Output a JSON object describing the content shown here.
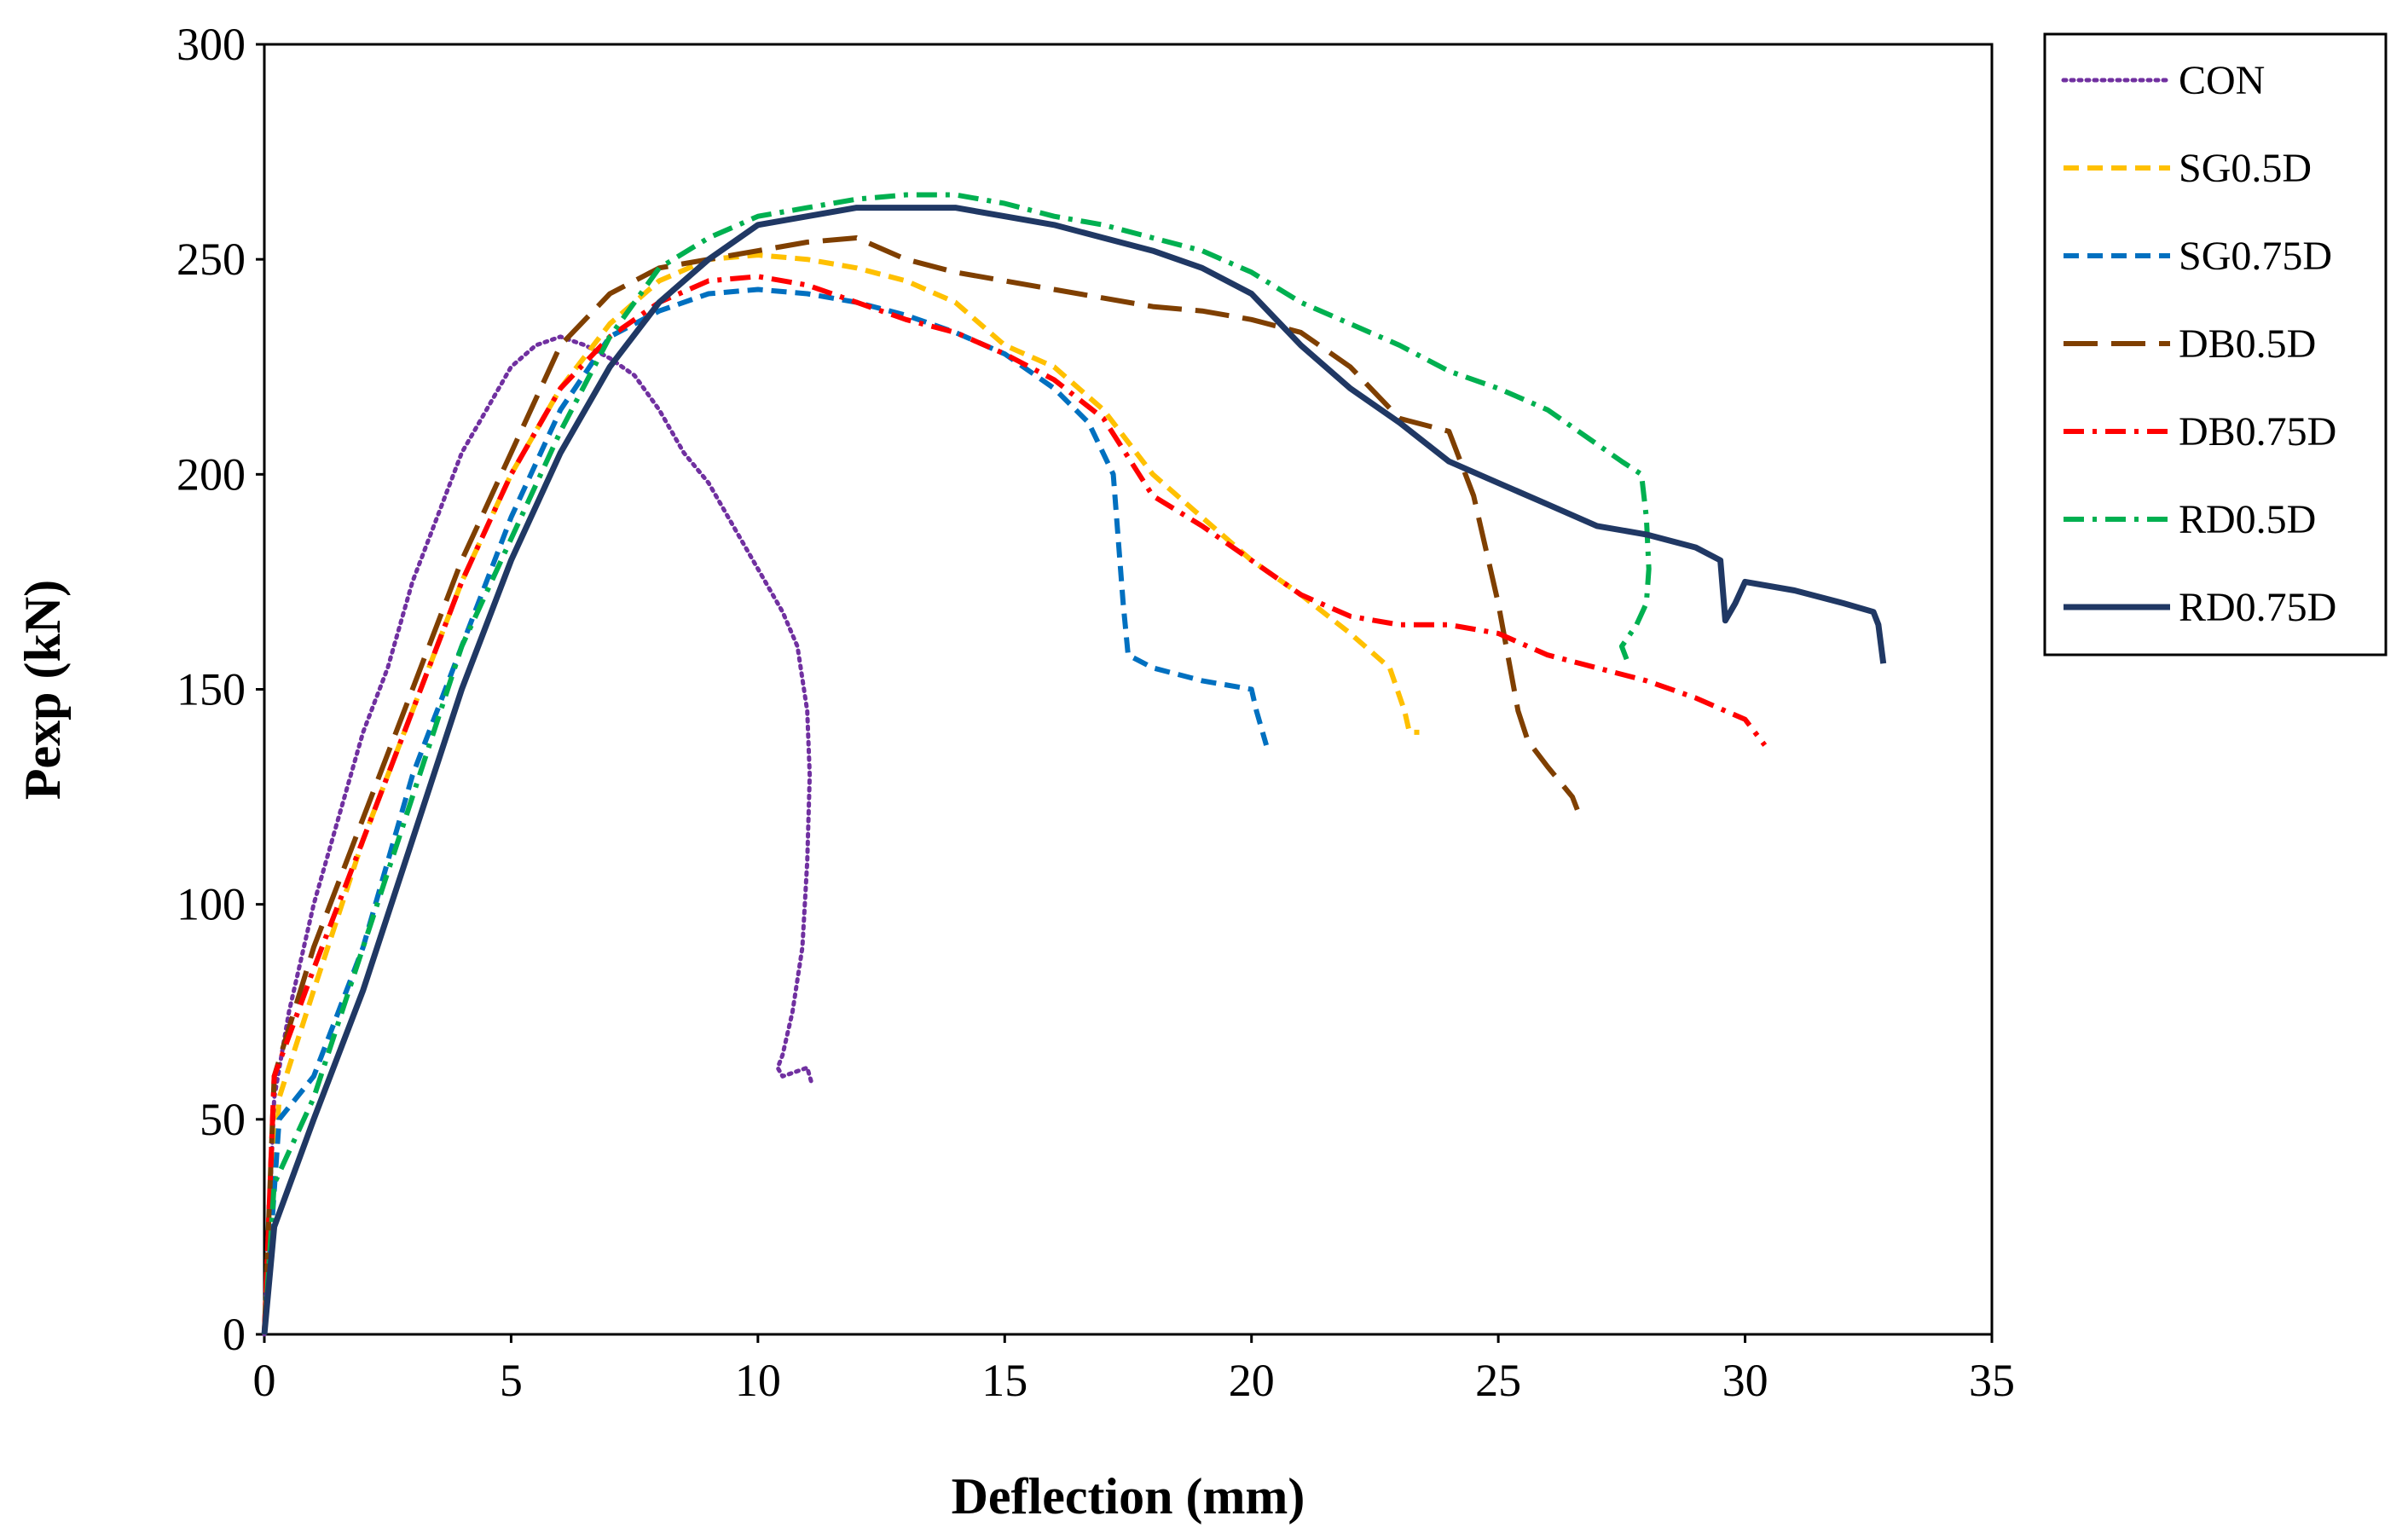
{
  "chart_data": {
    "type": "line",
    "title": "",
    "xlabel": "Deflection (mm)",
    "ylabel": "Pexp (kN)",
    "xlim": [
      0,
      35
    ],
    "ylim": [
      0,
      300
    ],
    "xticks": [
      0,
      5,
      10,
      15,
      20,
      25,
      30,
      35
    ],
    "yticks": [
      0,
      50,
      100,
      150,
      200,
      250,
      300
    ],
    "xtick_labels": [
      "0",
      "5",
      "10",
      "15",
      "20",
      "25",
      "30",
      "35"
    ],
    "ytick_labels": [
      "0",
      "50",
      "100",
      "150",
      "200",
      "250",
      "300"
    ],
    "grid": false,
    "legend_position": "right",
    "series": [
      {
        "name": "CON",
        "color": "#7030A0",
        "dash": "dotted",
        "x": [
          0,
          0.2,
          0.5,
          1,
          1.5,
          2,
          2.5,
          3,
          3.5,
          4,
          4.5,
          5,
          5.5,
          6,
          6.5,
          7,
          7.5,
          8,
          8.5,
          9,
          9.5,
          10,
          10.5,
          10.8,
          11,
          11.05,
          11.0,
          10.9,
          10.7,
          10.5,
          10.4,
          10.5,
          11.0,
          11.1
        ],
        "y": [
          0,
          55,
          75,
          100,
          120,
          140,
          155,
          175,
          190,
          205,
          215,
          225,
          230,
          232,
          230,
          227,
          223,
          215,
          205,
          198,
          188,
          178,
          168,
          160,
          145,
          130,
          110,
          90,
          75,
          65,
          62,
          60,
          62,
          58
        ]
      },
      {
        "name": "SG0.5D",
        "color": "#FFC000",
        "dash": "dashed",
        "x": [
          0,
          0.3,
          1,
          2,
          3,
          4,
          5,
          6,
          7,
          8,
          9,
          10,
          11,
          12,
          13,
          14,
          15,
          16,
          17,
          18,
          19,
          20,
          21,
          22,
          22.8,
          23.1,
          23.2,
          23.4
        ],
        "y": [
          0,
          55,
          80,
          115,
          145,
          175,
          200,
          220,
          235,
          245,
          250,
          251,
          250,
          248,
          245,
          240,
          230,
          225,
          215,
          200,
          190,
          180,
          172,
          163,
          155,
          145,
          140,
          140
        ]
      },
      {
        "name": "SG0.75D",
        "color": "#0070C0",
        "dash": "dashed",
        "x": [
          0,
          0.3,
          1,
          2,
          3,
          4,
          5,
          6,
          7,
          8,
          9,
          10,
          11,
          12,
          13,
          14,
          15,
          16,
          16.7,
          17.2,
          17.3,
          17.4,
          17.5,
          18,
          19,
          20,
          20.1,
          20.3
        ],
        "y": [
          0,
          50,
          60,
          90,
          130,
          160,
          190,
          215,
          232,
          238,
          242,
          243,
          242,
          240,
          237,
          233,
          228,
          220,
          212,
          200,
          185,
          170,
          158,
          155,
          152,
          150,
          145,
          137
        ]
      },
      {
        "name": "DB0.5D",
        "color": "#7F3F00",
        "dash": "longdash",
        "x": [
          0,
          0.2,
          1,
          2,
          3,
          4,
          5,
          6,
          7,
          8,
          9,
          10,
          11,
          12,
          13,
          14,
          15,
          16,
          17,
          18,
          19,
          20,
          21,
          22,
          23,
          24,
          24.5,
          25,
          25.4,
          25.6,
          26,
          26.5,
          26.6
        ],
        "y": [
          0,
          60,
          90,
          120,
          150,
          180,
          205,
          230,
          242,
          248,
          250,
          252,
          254,
          255,
          250,
          247,
          245,
          243,
          241,
          239,
          238,
          236,
          233,
          225,
          213,
          210,
          195,
          170,
          145,
          138,
          132,
          125,
          122
        ]
      },
      {
        "name": "DB0.75D",
        "color": "#FF0000",
        "dash": "dashdot",
        "x": [
          0,
          0.2,
          1,
          2,
          3,
          4,
          5,
          6,
          7,
          8,
          9,
          10,
          11,
          12,
          13,
          14,
          15,
          16,
          17,
          18,
          19,
          20,
          21,
          22,
          23,
          24,
          25,
          26,
          27,
          28,
          29,
          30,
          30.4
        ],
        "y": [
          0,
          60,
          85,
          115,
          145,
          175,
          200,
          220,
          232,
          240,
          245,
          246,
          244,
          240,
          236,
          233,
          228,
          222,
          213,
          195,
          188,
          180,
          172,
          167,
          165,
          165,
          163,
          158,
          155,
          152,
          148,
          143,
          137
        ]
      },
      {
        "name": "RD0.5D",
        "color": "#00B050",
        "dash": "dashdot",
        "x": [
          0,
          0.2,
          1,
          2,
          3,
          4,
          5,
          6,
          7,
          8,
          9,
          10,
          11,
          12,
          13,
          14,
          15,
          16,
          17,
          18,
          19,
          20,
          21,
          22,
          23,
          24,
          25,
          26,
          27,
          27.5,
          27.9,
          28.0,
          28.05,
          28.0,
          27.8,
          27.5,
          27.6
        ],
        "y": [
          0,
          35,
          55,
          90,
          125,
          160,
          185,
          210,
          232,
          248,
          255,
          260,
          262,
          264,
          265,
          265,
          263,
          260,
          258,
          255,
          252,
          247,
          240,
          235,
          230,
          224,
          220,
          215,
          207,
          203,
          200,
          190,
          178,
          170,
          165,
          160,
          157
        ]
      },
      {
        "name": "RD0.75D",
        "color": "#203864",
        "dash": "solid",
        "x": [
          0,
          0.2,
          1,
          2,
          3,
          4,
          5,
          6,
          7,
          8,
          9,
          10,
          11,
          12,
          13,
          14,
          15,
          16,
          17,
          18,
          19,
          20,
          21,
          22,
          23,
          24,
          25,
          26,
          27,
          28,
          29,
          29.5,
          29.6,
          29.8,
          30,
          31,
          32,
          32.6,
          32.7,
          32.8
        ],
        "y": [
          0,
          25,
          50,
          80,
          115,
          150,
          180,
          205,
          225,
          240,
          250,
          258,
          260,
          262,
          262,
          262,
          260,
          258,
          255,
          252,
          248,
          242,
          230,
          220,
          212,
          203,
          198,
          193,
          188,
          186,
          183,
          180,
          166,
          170,
          175,
          173,
          170,
          168,
          165,
          156
        ]
      }
    ]
  }
}
